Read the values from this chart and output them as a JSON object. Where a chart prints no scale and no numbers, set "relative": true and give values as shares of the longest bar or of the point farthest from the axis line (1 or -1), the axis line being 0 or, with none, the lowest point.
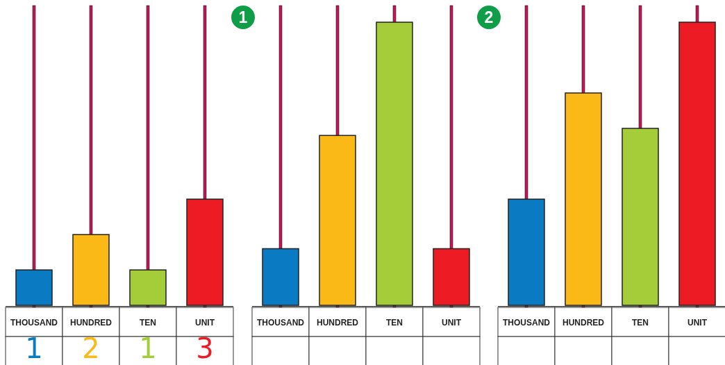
{
  "chart_data": [
    {
      "type": "bar",
      "categories": [
        "THOUSAND",
        "HUNDRED",
        "TEN",
        "UNIT"
      ],
      "values": [
        1,
        2,
        1,
        3
      ],
      "colors": [
        "#0a7bc2",
        "#fbb917",
        "#a4cd39",
        "#ed1c24"
      ],
      "data_labels": true
    },
    {
      "type": "bar",
      "title": "1",
      "categories": [
        "THOUSAND",
        "HUNDRED",
        "TEN",
        "UNIT"
      ],
      "values": [
        0.2,
        0.6,
        1,
        0.2
      ],
      "colors": [
        "#0a7bc2",
        "#fbb917",
        "#a4cd39",
        "#ed1c24"
      ],
      "relative": true
    },
    {
      "type": "bar",
      "title": "2",
      "categories": [
        "THOUSAND",
        "HUNDRED",
        "TEN",
        "UNIT"
      ],
      "values": [
        0.375,
        0.75,
        0.625,
        1
      ],
      "colors": [
        "#0a7bc2",
        "#fbb917",
        "#a4cd39",
        "#ed1c24"
      ],
      "relative": true
    }
  ]
}
